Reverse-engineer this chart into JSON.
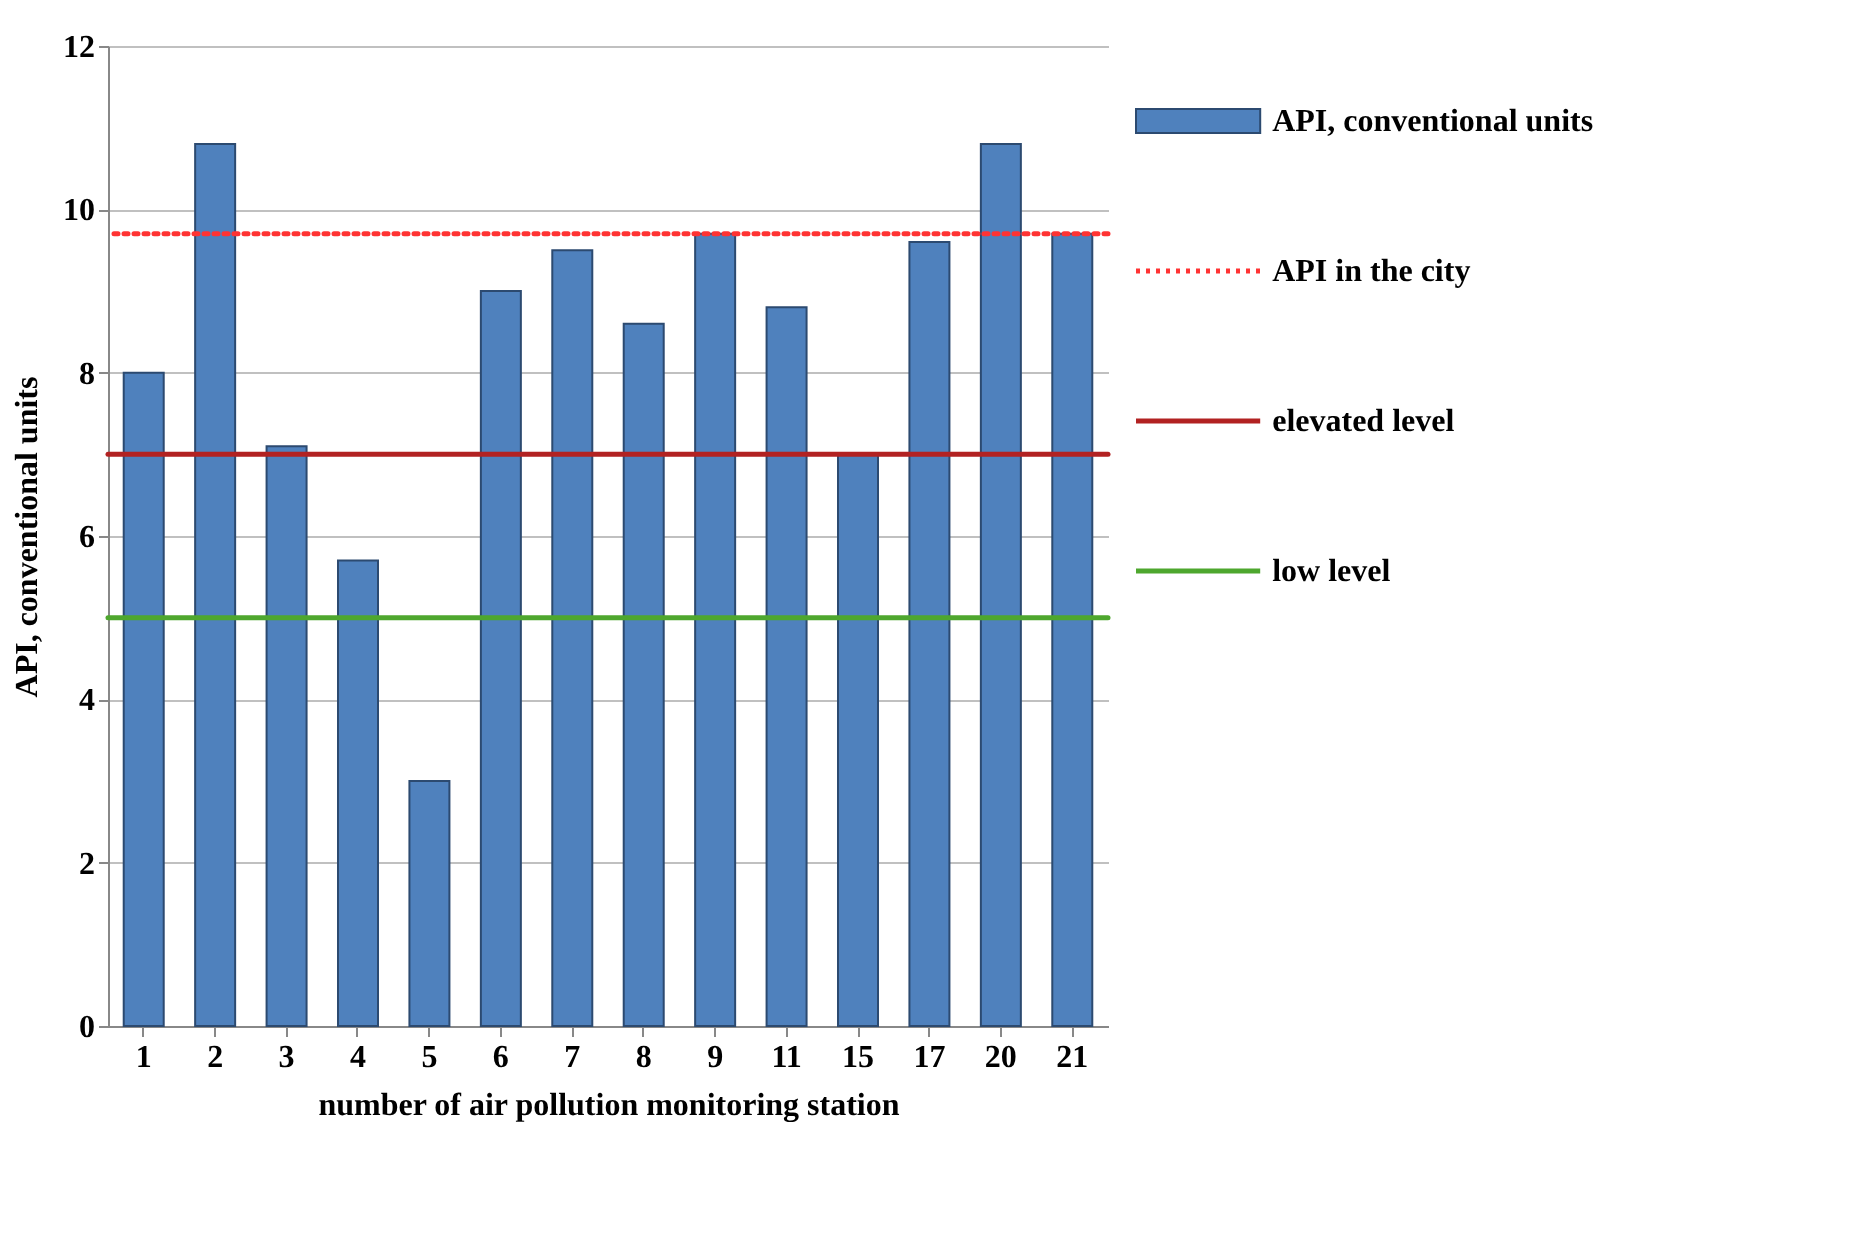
{
  "chart_data": {
    "type": "bar",
    "xlabel": "number of air pollution monitoring station",
    "ylabel": "API, conventional units",
    "categories": [
      "1",
      "2",
      "3",
      "4",
      "5",
      "6",
      "7",
      "8",
      "9",
      "11",
      "15",
      "17",
      "20",
      "21"
    ],
    "series": [
      {
        "name": "API, conventional units",
        "color": "#4f81bd",
        "values": [
          8.0,
          10.8,
          7.1,
          5.7,
          3.0,
          9.0,
          9.5,
          8.6,
          9.7,
          8.8,
          7.0,
          9.6,
          10.8,
          9.7
        ]
      }
    ],
    "ref_lines": [
      {
        "axis": "y",
        "value": 9.7,
        "label": "API in the city",
        "color": "#ff3333",
        "line_style": "dotted"
      },
      {
        "axis": "y",
        "value": 7,
        "label": "elevated level",
        "color": "#b22222",
        "line_style": "solid"
      },
      {
        "axis": "y",
        "value": 5,
        "label": "low level",
        "color": "#4ea72e",
        "line_style": "solid"
      }
    ],
    "ylim": [
      0,
      12
    ],
    "yticks": [
      0,
      2,
      4,
      6,
      8,
      10,
      12
    ],
    "grid": "y",
    "legend": "right"
  }
}
